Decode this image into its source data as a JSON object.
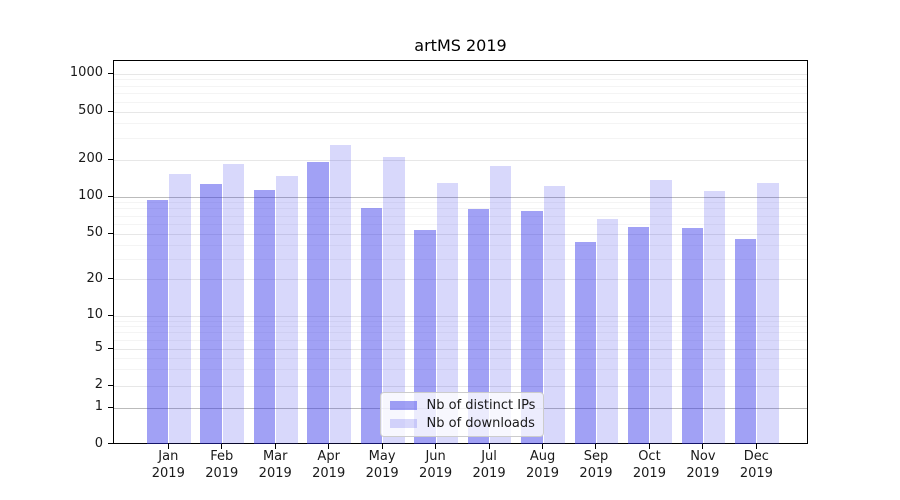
{
  "title": "artMS 2019",
  "chart_data": {
    "type": "bar",
    "title": "artMS 2019",
    "x_month_labels": [
      "Jan",
      "Feb",
      "Mar",
      "Apr",
      "May",
      "Jun",
      "Jul",
      "Aug",
      "Sep",
      "Oct",
      "Nov",
      "Dec"
    ],
    "x_year_label": "2019",
    "series": [
      {
        "name": "Nb of distinct IPs",
        "color": "rgba(47,47,232,0.45)",
        "values": [
          94,
          127,
          114,
          190,
          80,
          53,
          79,
          76,
          42,
          57,
          55,
          45
        ]
      },
      {
        "name": "Nb of downloads",
        "color": "rgba(47,47,232,0.19)",
        "values": [
          153,
          183,
          148,
          265,
          208,
          128,
          176,
          122,
          65,
          136,
          110,
          128
        ]
      }
    ],
    "yscale": "symlog",
    "ylim": [
      0,
      1270
    ],
    "ytick_values": [
      0,
      1,
      2,
      5,
      10,
      20,
      50,
      100,
      200,
      500,
      1000
    ],
    "ytick_labels": [
      "0",
      "1",
      "2",
      "5",
      "10",
      "20",
      "50",
      "100",
      "200",
      "500",
      "1000"
    ],
    "minor_ytick_values": [
      3,
      4,
      6,
      7,
      8,
      9,
      30,
      40,
      60,
      70,
      80,
      90,
      300,
      400,
      600,
      700,
      800,
      900
    ],
    "emphasized_gridlines": [
      1,
      100
    ],
    "grid": true,
    "legend_position": "lower center"
  },
  "colors": {
    "background": "#ffffff",
    "spine": "#000000",
    "grid_major": "#e7e7e7",
    "grid_minor": "#f4f4f4",
    "grid_emphasis": "#bbbbbb",
    "text": "#1a1a1a",
    "legend_border": "#cccccc"
  }
}
